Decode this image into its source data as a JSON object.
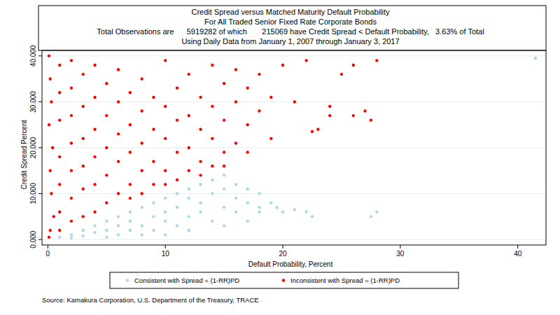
{
  "chart_data": {
    "type": "scatter",
    "title": "Credit Spread versus Matched Maturity Default Probability",
    "subtitle": [
      "For All Traded Senior Fixed Rate Corporate Bonds",
      "Total Observations are      5919282 of which       215069 have Credit Spread < Default Probability,   3.63% of Total",
      "Using Daily Data from January 1, 2007 through January 3, 2017"
    ],
    "x_label": "Default Probability, Percent",
    "y_label": "Credit Spread Percent",
    "annotations": [
      "Source: Kamakura Corporation, U.S. Department of the Treasury, TRACE"
    ],
    "xlim": [
      -0.5,
      42.4
    ],
    "xticks": [
      0,
      10,
      20,
      30,
      40
    ],
    "ylim": [
      -1.2,
      41.2
    ],
    "yticks": [
      {
        "value": 0,
        "label": "0.000"
      },
      {
        "value": 10,
        "label": "10.000"
      },
      {
        "value": 20,
        "label": "20.000"
      },
      {
        "value": 30,
        "label": "30.000"
      },
      {
        "value": 40,
        "label": "40.000"
      }
    ],
    "grid": true,
    "legend": "bottom",
    "series": [
      {
        "name": "Consistent with Spread = (1-RR)PD",
        "color": "#add8e6",
        "marker": "circle",
        "x": [
          1,
          2,
          2,
          3,
          3,
          4,
          4,
          5,
          5,
          5,
          6,
          6,
          6,
          7,
          7,
          7,
          8,
          8,
          8,
          9,
          9,
          9,
          10,
          10,
          10,
          10,
          11,
          11,
          11,
          12,
          12,
          12,
          12,
          13,
          13,
          13,
          14,
          14,
          14,
          15,
          15,
          15,
          15,
          16,
          16,
          16,
          17,
          17,
          17,
          18,
          18,
          18,
          19,
          19.5,
          20,
          21,
          22,
          22.5,
          27.5,
          28,
          41.5
        ],
        "values": [
          0.5,
          1,
          0.3,
          2,
          0.8,
          1.5,
          3,
          2,
          4,
          0.5,
          3,
          5,
          1,
          2,
          4,
          6,
          3,
          7,
          1,
          5,
          8,
          2,
          4,
          9,
          6,
          1,
          3,
          7,
          10,
          5,
          9,
          11,
          2,
          6,
          12,
          8,
          4,
          10,
          13,
          7,
          11,
          14,
          3,
          9,
          12,
          6,
          8,
          11,
          4,
          7,
          10,
          6,
          8,
          7,
          6,
          6.5,
          6,
          5,
          5,
          6,
          39.5
        ]
      },
      {
        "name": "Inconsistent with Spread = (1-RR)PD",
        "color": "#ff0000",
        "marker": "circle",
        "x": [
          0.1,
          0.2,
          0.3,
          0.1,
          0.4,
          0.2,
          0.3,
          0.5,
          0.2,
          0.1,
          1,
          1,
          1,
          1,
          1,
          1,
          1,
          2,
          2,
          2,
          2,
          2,
          2,
          2,
          3,
          3,
          3,
          3,
          3,
          3,
          4,
          4,
          4,
          4,
          4,
          4,
          5,
          5,
          5,
          5,
          5,
          6,
          6,
          6,
          6,
          6,
          7,
          7,
          7,
          7,
          7,
          8,
          8,
          8,
          8,
          8,
          9,
          9,
          9,
          9,
          10,
          10,
          10,
          10,
          10,
          11,
          11,
          11,
          11,
          12,
          12,
          12,
          12,
          13,
          13,
          13,
          13,
          14,
          14,
          14,
          14,
          15,
          15,
          15,
          15,
          16,
          16,
          16,
          17,
          17,
          17,
          18,
          18,
          19,
          19,
          20,
          21,
          22,
          23,
          24,
          24,
          25,
          26,
          26,
          27,
          27.5,
          28,
          22.5
        ],
        "values": [
          40,
          35,
          30,
          25,
          20,
          15,
          10,
          5,
          2,
          0.5,
          38,
          32,
          26,
          18,
          12,
          6,
          2,
          39,
          33,
          27,
          21,
          15,
          9,
          4,
          36,
          29,
          22,
          16,
          11,
          5,
          38,
          31,
          24,
          18,
          12,
          6,
          34,
          27,
          20,
          14,
          8,
          37,
          30,
          23,
          17,
          10,
          32,
          25,
          19,
          12,
          9,
          35,
          28,
          21,
          15,
          10,
          31,
          24,
          17,
          12,
          39,
          29,
          22,
          15,
          12,
          33,
          26,
          19,
          13,
          36,
          27,
          20,
          15,
          31,
          24,
          17,
          14,
          38,
          29,
          22,
          16,
          34,
          26,
          19,
          16,
          37,
          30,
          21,
          33,
          25,
          19,
          36,
          28,
          31,
          22,
          38,
          30,
          39,
          24,
          27,
          29,
          36,
          38,
          27,
          28,
          26,
          39,
          23.5
        ]
      }
    ]
  }
}
